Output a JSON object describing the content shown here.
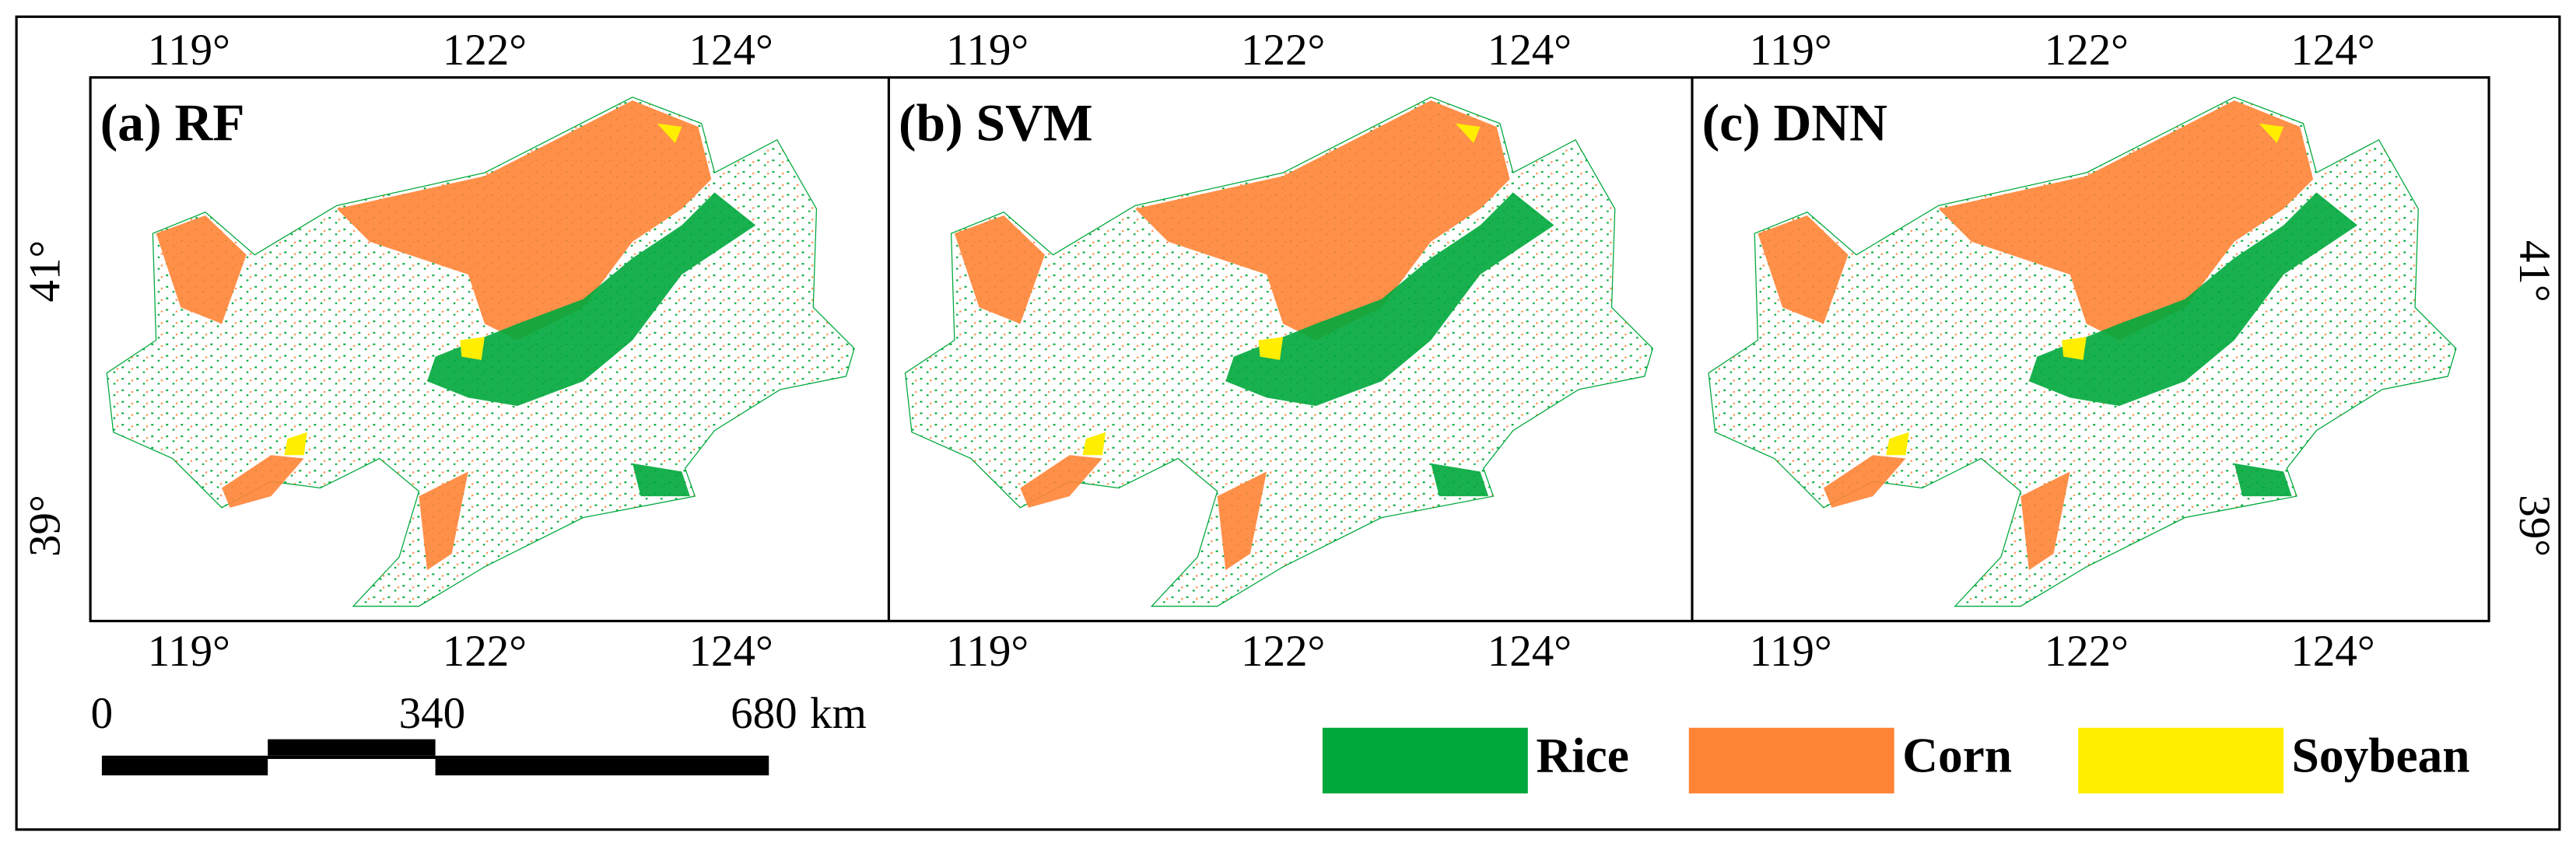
{
  "panels": [
    {
      "label": "(a) RF"
    },
    {
      "label": "(b) SVM"
    },
    {
      "label": "(c) DNN"
    }
  ],
  "lon_ticks": [
    "119°",
    "122°",
    "124°"
  ],
  "lat_ticks": [
    "41°",
    "39°"
  ],
  "scale_bar": {
    "labels": [
      "0",
      "340",
      "680"
    ],
    "unit": "km"
  },
  "legend": [
    {
      "label": "Rice",
      "color": "#00a83c"
    },
    {
      "label": "Corn",
      "color": "#ff8436"
    },
    {
      "label": "Soybean",
      "color": "#ffee00"
    }
  ]
}
